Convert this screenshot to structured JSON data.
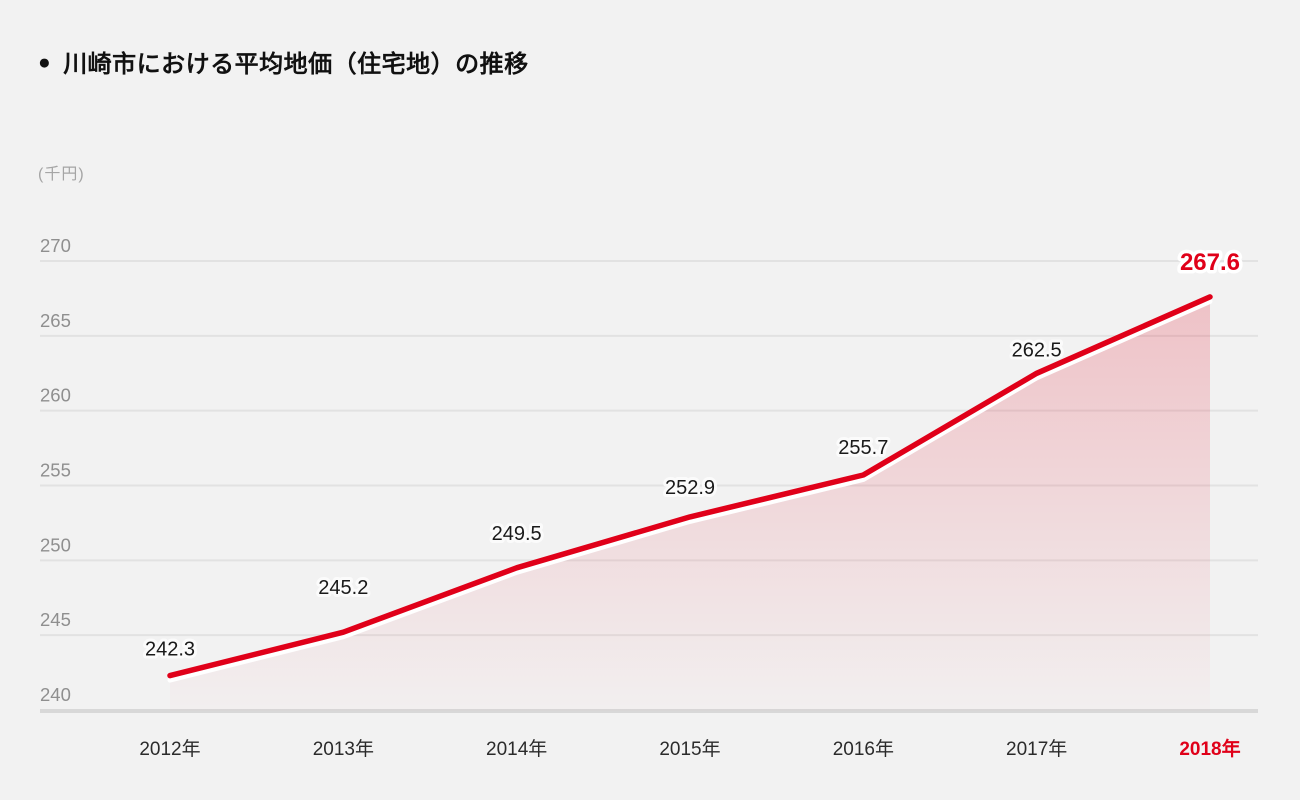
{
  "header": {
    "bullet": "●",
    "title": "川崎市における平均地価（住宅地）の推移"
  },
  "chart_data": {
    "type": "line",
    "title": "川崎市における平均地価（住宅地）の推移",
    "unit_label": "(千円)",
    "categories": [
      "2012年",
      "2013年",
      "2014年",
      "2015年",
      "2016年",
      "2017年",
      "2018年"
    ],
    "values": [
      242.3,
      245.2,
      249.5,
      252.9,
      255.7,
      262.5,
      267.6
    ],
    "yticks": [
      240,
      245,
      250,
      255,
      260,
      265,
      270
    ],
    "ylim": [
      240,
      270
    ],
    "grid": "horizontal",
    "legend": "none",
    "highlight_index": 6,
    "colors": {
      "background": "#f2f2f2",
      "line": "#e00019",
      "line_shadow": "#ffffff",
      "area_top": "rgba(224,0,25,0.20)",
      "area_bottom": "rgba(224,0,25,0.01)",
      "grid": "#e2e2e2",
      "axis": "#d8d8d8",
      "ytick_text": "#8f8f8f",
      "xtick_text": "#2b2b2b",
      "label_text": "#1a1a1a",
      "label_halo": "#fbfbfb",
      "highlight_text": "#e00019"
    }
  }
}
